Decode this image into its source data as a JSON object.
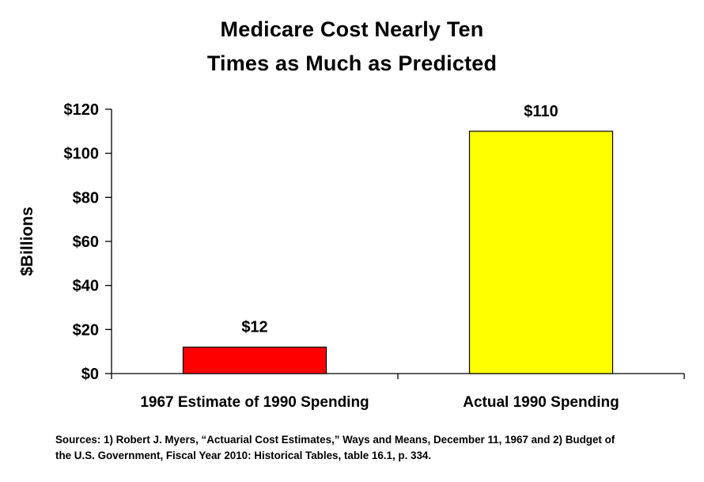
{
  "chart_data": {
    "type": "bar",
    "title": "Medicare Cost Nearly Ten Times as Much as Predicted",
    "title_lines": [
      "Medicare Cost Nearly Ten",
      "Times as Much as Predicted"
    ],
    "xlabel": "",
    "ylabel": "$Billions",
    "ylim": [
      0,
      120
    ],
    "yticks": [
      0,
      20,
      40,
      60,
      80,
      100,
      120
    ],
    "ytick_labels": [
      "$0",
      "$20",
      "$40",
      "$60",
      "$80",
      "$100",
      "$120"
    ],
    "categories": [
      "1967 Estimate of 1990 Spending",
      "Actual 1990 Spending"
    ],
    "values": [
      12,
      110
    ],
    "data_labels": [
      "$12",
      "$110"
    ],
    "bar_colors": [
      "#ff0000",
      "#ffff00"
    ],
    "grid": false,
    "legend": "none"
  },
  "sources": {
    "line1": "Sources: 1) Robert J. Myers, “Actuarial Cost Estimates,” Ways and Means, December 11, 1967 and 2) Budget of",
    "line2": "the U.S. Government, Fiscal Year 2010: Historical Tables, table 16.1, p. 334."
  }
}
